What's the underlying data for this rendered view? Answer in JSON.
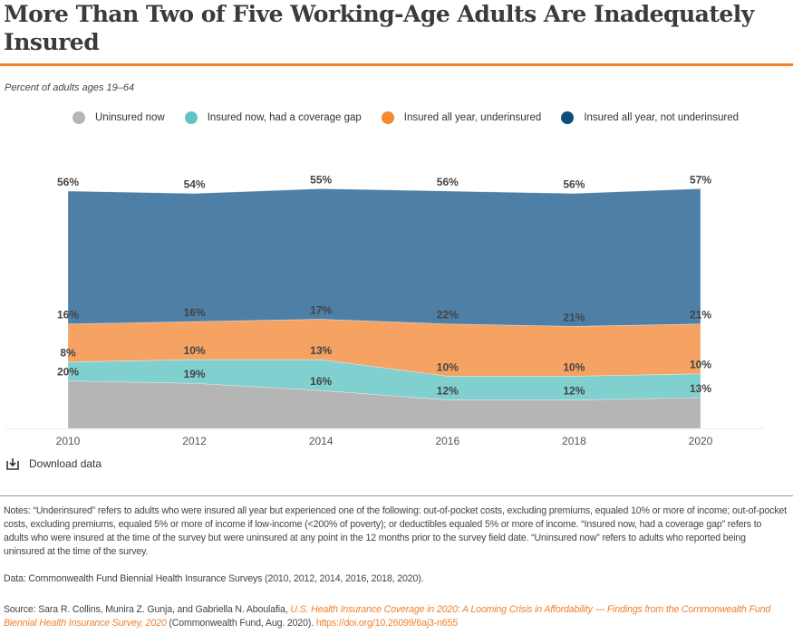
{
  "title": "More Than Two of Five Working-Age Adults Are Inadequately Insured",
  "subtitle": "Percent of adults ages 19–64",
  "download_label": "Download data",
  "colors": {
    "accent": "#f0802a",
    "uninsured": "#b5b5b5",
    "gap": "#7fd0cf",
    "underinsured": "#f5a263",
    "not_underinsured": "#4e7fa6"
  },
  "chart_data": {
    "type": "area",
    "stacked": true,
    "x": [
      "2010",
      "2012",
      "2014",
      "2016",
      "2018",
      "2020"
    ],
    "ylim": [
      0,
      101
    ],
    "grid": false,
    "legend_position": "top",
    "series": [
      {
        "name": "Uninsured now",
        "color": "#b5b5b5",
        "values": [
          20,
          19,
          16,
          12,
          12,
          13
        ],
        "labels": [
          "20%",
          "19%",
          "16%",
          "12%",
          "12%",
          "13%"
        ]
      },
      {
        "name": "Insured now, had a coverage gap",
        "color": "#7fd0cf",
        "values": [
          8,
          10,
          13,
          10,
          10,
          10
        ],
        "labels": [
          "8%",
          "10%",
          "13%",
          "10%",
          "10%",
          "10%"
        ]
      },
      {
        "name": "Insured all year, underinsured",
        "color": "#f5a263",
        "values": [
          16,
          16,
          17,
          22,
          21,
          21
        ],
        "labels": [
          "16%",
          "16%",
          "17%",
          "22%",
          "21%",
          "21%"
        ]
      },
      {
        "name": "Insured all year, not underinsured",
        "color": "#4e7fa6",
        "values": [
          56,
          54,
          55,
          56,
          56,
          57
        ],
        "labels": [
          "56%",
          "54%",
          "55%",
          "56%",
          "56%",
          "57%"
        ]
      }
    ]
  },
  "notes": "Notes: “Underinsured” refers to adults who were insured all year but experienced one of the following: out-of-pocket costs, excluding premiums, equaled 10% or more of income; out-of-pocket costs, excluding premiums, equaled 5% or more of income if low-income (<200% of poverty); or deductibles equaled 5% or more of income. “Insured now, had a coverage gap” refers to adults who were insured at the time of the survey but were uninsured at any point in the 12 months prior to the survey field date. “Uninsured now” refers to adults who reported being uninsured at the time of the survey.",
  "data_note": "Data: Commonwealth Fund Biennial Health Insurance Surveys (2010, 2012, 2014, 2016, 2018, 2020).",
  "source": {
    "prefix": "Source: Sara R. Collins, Munira Z. Gunja, and Gabriella N. Aboulafia, ",
    "title": "U.S. Health Insurance Coverage in 2020: A Looming Crisis in Affordability — Findings from the Commonwealth Fund Biennial Health Insurance Survey, 2020",
    "publisher": " (Commonwealth Fund, Aug. 2020). ",
    "doi": "https://doi.org/10.26099/6aj3-n655"
  }
}
